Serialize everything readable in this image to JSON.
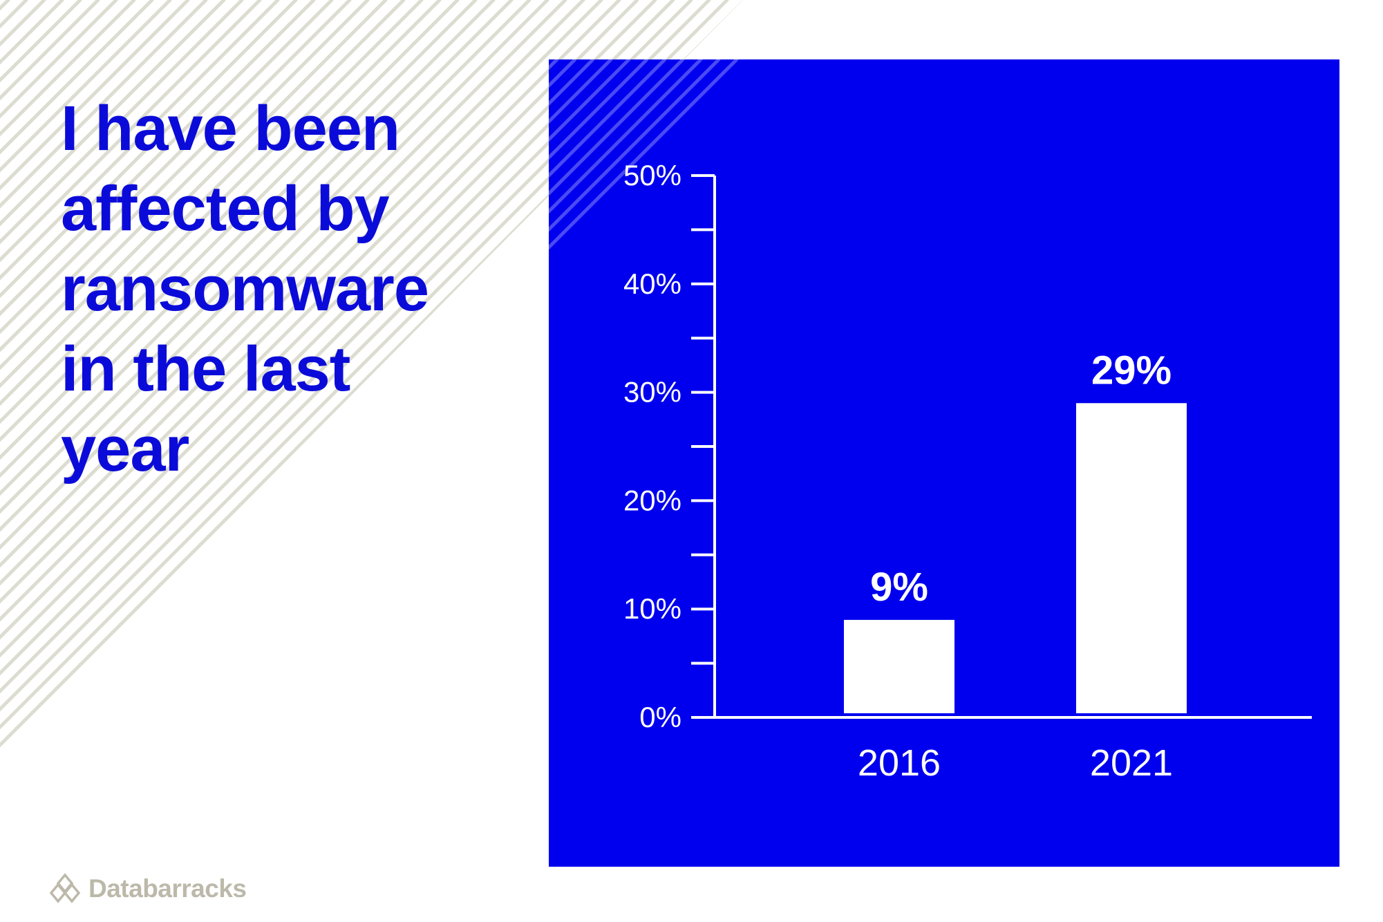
{
  "colors": {
    "panel": "#0000ee",
    "title": "#0b0bd9",
    "bar": "#ffffff",
    "stripe": "#dcdcd0",
    "logo": "#bdb9aa"
  },
  "title_lines": [
    "I have been",
    "affected  by",
    "ransomware",
    "in the last",
    "year"
  ],
  "logo": {
    "text": "Databarracks",
    "icon": "interlocking-diamonds-icon"
  },
  "chart_data": {
    "type": "bar",
    "categories": [
      "2016",
      "2021"
    ],
    "values": [
      9,
      29
    ],
    "data_labels": [
      "9%",
      "29%"
    ],
    "y_tick_labels": [
      "0%",
      "10%",
      "20%",
      "30%",
      "40%",
      "50%"
    ],
    "ylim": [
      0,
      50
    ],
    "y_major_step": 10,
    "y_minor_step": 5,
    "grid": false,
    "legend": "none"
  }
}
